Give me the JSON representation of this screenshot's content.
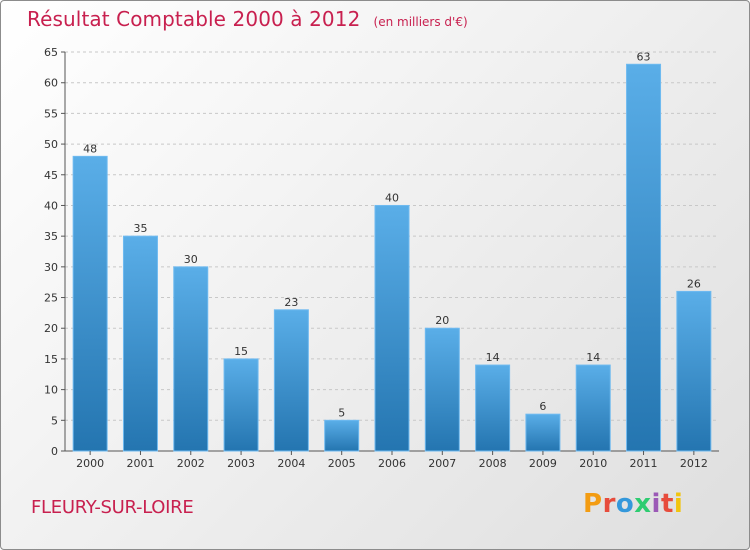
{
  "header": {
    "title": "Résultat Comptable 2000 à 2012",
    "subtitle": "(en milliers d'€)"
  },
  "footer": {
    "town": "FLEURY-SUR-LOIRE",
    "logo_text": "Proxiti",
    "logo_colors": [
      "#f39c12",
      "#e74c3c",
      "#3498db",
      "#2ecc71",
      "#9b59b6",
      "#e74c3c",
      "#f1c40f"
    ]
  },
  "colors": {
    "title": "#c8204f",
    "bar_light": "#5aaee8",
    "bar_dark": "#2475b0",
    "axis": "#555555",
    "grid": "#c8c8c8"
  },
  "chart_data": {
    "type": "bar",
    "title": "Résultat Comptable 2000 à 2012",
    "subtitle": "(en milliers d'€)",
    "xlabel": "",
    "ylabel": "",
    "categories": [
      "2000",
      "2001",
      "2002",
      "2003",
      "2004",
      "2005",
      "2006",
      "2007",
      "2008",
      "2009",
      "2010",
      "2011",
      "2012"
    ],
    "values": [
      48,
      35,
      30,
      15,
      23,
      5,
      40,
      20,
      14,
      6,
      14,
      63,
      26
    ],
    "ylim": [
      0,
      65
    ],
    "yticks": [
      0,
      5,
      10,
      15,
      20,
      25,
      30,
      35,
      40,
      45,
      50,
      55,
      60,
      65
    ],
    "grid": true,
    "legend": "none"
  }
}
